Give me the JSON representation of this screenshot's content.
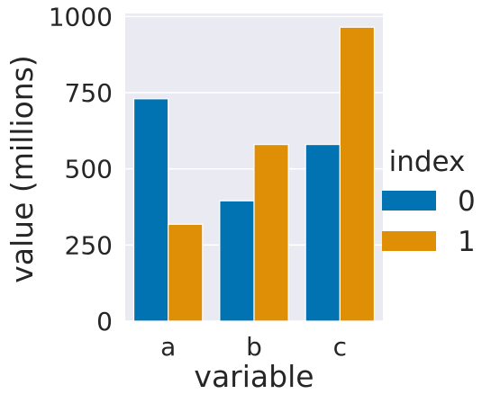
{
  "chart_data": {
    "type": "bar",
    "xlabel": "variable",
    "ylabel": "value (millions)",
    "categories": [
      "a",
      "b",
      "c"
    ],
    "series": [
      {
        "name": "0",
        "values": [
          730,
          395,
          580
        ],
        "color": "#0173b2"
      },
      {
        "name": "1",
        "values": [
          318,
          580,
          965
        ],
        "color": "#de8f05"
      }
    ],
    "ylim": [
      0,
      1010
    ],
    "yticks": [
      0,
      250,
      500,
      750,
      1000
    ],
    "ytick_labels": [
      "0",
      "250",
      "500",
      "750",
      "1000"
    ],
    "legend": {
      "title": "index",
      "placement": "right"
    },
    "grid": true,
    "background": "#eaeaf2",
    "gridline_color": "#ffffff"
  }
}
